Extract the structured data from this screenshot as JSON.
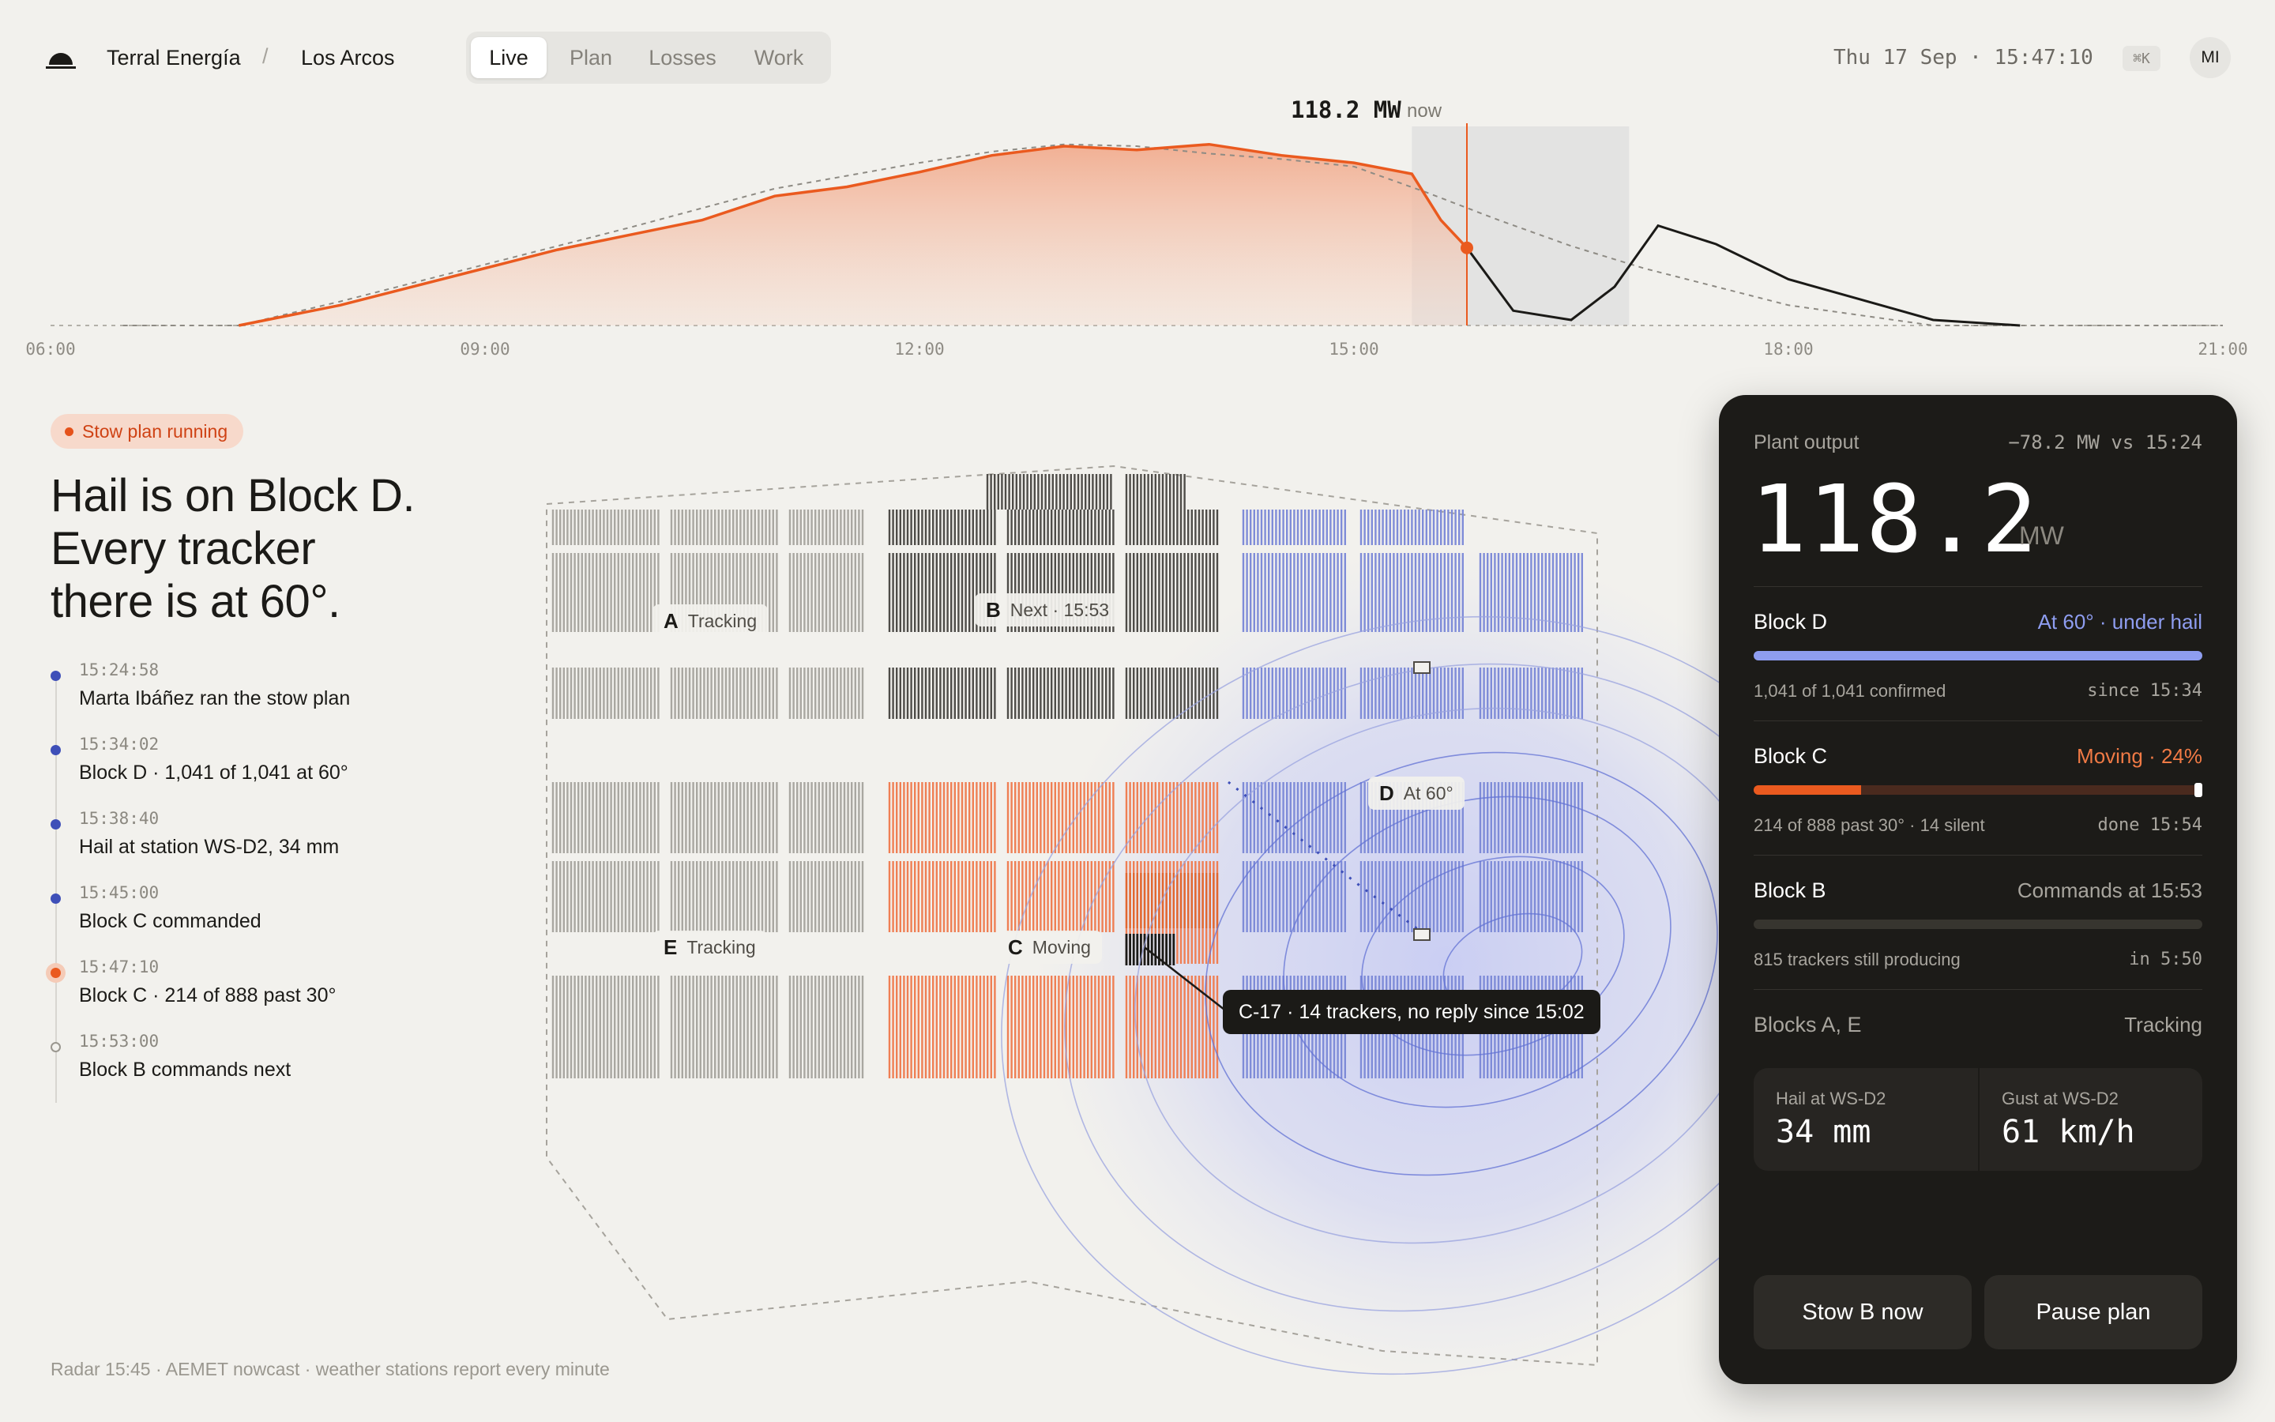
{
  "header": {
    "company": "Terral Energía",
    "separator": "/",
    "site": "Los Arcos",
    "tabs": [
      {
        "label": "Live",
        "active": true
      },
      {
        "label": "Plan",
        "active": false
      },
      {
        "label": "Losses",
        "active": false
      },
      {
        "label": "Work",
        "active": false
      }
    ],
    "clock": "Thu 17 Sep · 15:47:10",
    "shortcut": "⌘K",
    "avatar_initials": "MI"
  },
  "timeline": {
    "now_value": "118.2 MW",
    "now_label": "now",
    "ticks": [
      "06:00",
      "09:00",
      "12:00",
      "15:00",
      "18:00",
      "21:00"
    ],
    "x_range_hours": [
      6,
      21
    ],
    "now_hour": 15.78,
    "actual": [
      [
        7.3,
        0
      ],
      [
        8,
        11
      ],
      [
        9,
        31
      ],
      [
        9.5,
        41
      ],
      [
        10,
        49
      ],
      [
        10.5,
        57
      ],
      [
        11,
        70
      ],
      [
        11.5,
        75
      ],
      [
        12,
        83
      ],
      [
        12.5,
        92
      ],
      [
        13,
        97
      ],
      [
        13.5,
        95
      ],
      [
        14,
        98
      ],
      [
        14.5,
        92
      ],
      [
        15,
        88
      ],
      [
        15.4,
        82
      ],
      [
        15.6,
        57
      ],
      [
        15.78,
        42
      ]
    ],
    "forecast_expected": [
      [
        6.5,
        0
      ],
      [
        7.3,
        0
      ],
      [
        8,
        13
      ],
      [
        9,
        33
      ],
      [
        10,
        53
      ],
      [
        11,
        74
      ],
      [
        12,
        88
      ],
      [
        12.5,
        94
      ],
      [
        13,
        98
      ],
      [
        13.5,
        97
      ],
      [
        14,
        93
      ],
      [
        14.5,
        90
      ],
      [
        15,
        86
      ],
      [
        15.5,
        72
      ],
      [
        16,
        57
      ],
      [
        16.5,
        43
      ],
      [
        17,
        31
      ],
      [
        18,
        11
      ],
      [
        19,
        0
      ],
      [
        21,
        0
      ]
    ],
    "forecast_stow": [
      [
        15.78,
        42
      ],
      [
        16.1,
        8
      ],
      [
        16.5,
        3
      ],
      [
        16.8,
        21
      ],
      [
        17.1,
        54
      ],
      [
        17.5,
        44
      ],
      [
        18,
        25
      ],
      [
        18.5,
        14
      ],
      [
        19,
        3
      ],
      [
        19.6,
        0
      ]
    ],
    "window_start_hour": 15.4,
    "window_end_hour": 16.9,
    "y_max": 100,
    "colors": {
      "actual": "#ea5a1f",
      "forecast": "#1b1a17"
    }
  },
  "status_pill": "Stow plan running",
  "headline": [
    "Hail is on Block D.",
    "Every tracker",
    "there is at 60°."
  ],
  "log": [
    {
      "time": "15:24:58",
      "text": "Marta Ibáñez ran the stow plan",
      "state": "done"
    },
    {
      "time": "15:34:02",
      "text": "Block D · 1,041 of 1,041 at 60°",
      "state": "done"
    },
    {
      "time": "15:38:40",
      "text": "Hail at station WS-D2, 34 mm",
      "state": "done"
    },
    {
      "time": "15:45:00",
      "text": "Block C commanded",
      "state": "done"
    },
    {
      "time": "15:47:10",
      "text": "Block C · 214 of 888 past 30°",
      "state": "now"
    },
    {
      "time": "15:53:00",
      "text": "Block B commands next",
      "state": "future"
    }
  ],
  "map": {
    "blocks": [
      {
        "letter": "A",
        "status": "Tracking"
      },
      {
        "letter": "B",
        "status": "Next · 15:53"
      },
      {
        "letter": "C",
        "status": "Moving"
      },
      {
        "letter": "D",
        "status": "At 60°"
      },
      {
        "letter": "E",
        "status": "Tracking"
      }
    ],
    "tooltip": "C-17 · 14 trackers, no reply since 15:02",
    "colors": {
      "tracking": "#a9a7a1",
      "next": "#4e4c48",
      "moving": "#ef7f54",
      "stowed": "#7f8cd8",
      "silent": "#1b1a17",
      "hail": "#b7bdf0"
    }
  },
  "footnote": "Radar 15:45 · AEMET nowcast · weather stations report every minute",
  "panel": {
    "label": "Plant output",
    "delta": "−78.2 MW vs 15:24",
    "value": "118.2",
    "unit": "MW",
    "blocks": [
      {
        "name": "Block D",
        "status": "At 60° · under hail",
        "sub": "1,041 of 1,041 confirmed",
        "subr": "since 15:34",
        "progress": 1.0,
        "color": "#8e9df0"
      },
      {
        "name": "Block C",
        "status": "Moving · 24%",
        "sub": "214 of 888 past 30° · 14 silent",
        "subr": "done 15:54",
        "progress": 0.24,
        "color": "#ea5a1f"
      },
      {
        "name": "Block B",
        "status": "Commands at 15:53",
        "sub": "815 trackers still producing",
        "subr": "in 5:50",
        "progress": 0,
        "color": "#37352f"
      }
    ],
    "other_blocks": {
      "name": "Blocks A, E",
      "status": "Tracking"
    },
    "weather": [
      {
        "label": "Hail at WS-D2",
        "value": "34 mm"
      },
      {
        "label": "Gust at WS-D2",
        "value": "61 km/h"
      }
    ],
    "buttons": {
      "primary": "Stow B now",
      "secondary": "Pause plan"
    }
  }
}
